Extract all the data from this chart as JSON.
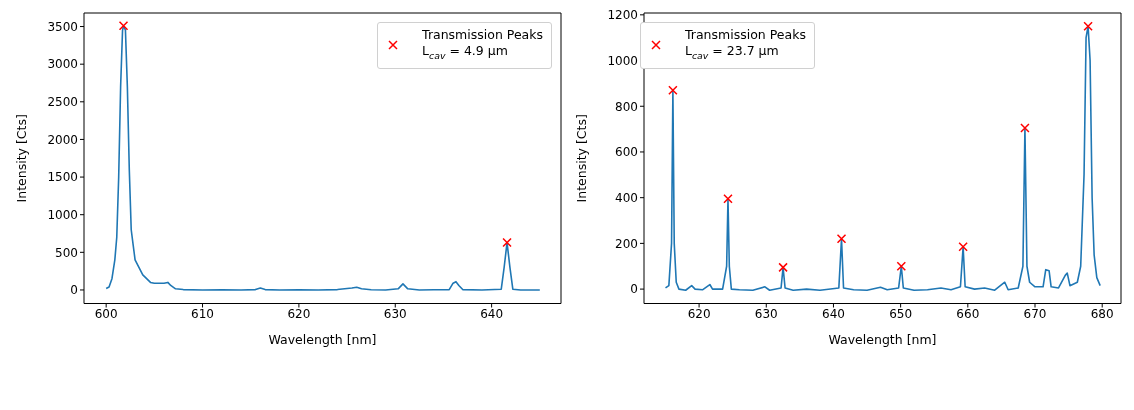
{
  "chart_data": [
    {
      "type": "line",
      "xlabel": "Wavelength [nm]",
      "ylabel": "Intensity [Cts]",
      "xlim": [
        597.7,
        647.2
      ],
      "ylim": [
        -180,
        3680
      ],
      "xticks": [
        600,
        610,
        620,
        630,
        640
      ],
      "yticks": [
        0,
        500,
        1000,
        1500,
        2000,
        2500,
        3000,
        3500
      ],
      "grid": false,
      "legend": "top right",
      "series": [
        {
          "color": "#1f77b4",
          "marker": "none",
          "x": [
            600.0,
            600.3,
            600.6,
            600.9,
            601.1,
            601.3,
            601.5,
            601.7,
            601.8,
            602.0,
            602.2,
            602.4,
            602.6,
            602.8,
            603.0,
            603.4,
            603.8,
            604.2,
            604.6,
            605.0,
            605.5,
            606.0,
            606.4,
            606.7,
            607.2,
            608,
            610,
            612,
            614,
            615.5,
            616.0,
            616.5,
            618,
            620,
            622,
            624,
            625.5,
            626,
            626.5,
            627.5,
            629,
            630.3,
            630.8,
            631.3,
            632.5,
            634,
            635.6,
            636.0,
            636.3,
            636.6,
            637,
            639,
            641.0,
            641.3,
            641.6,
            641.9,
            642.2,
            643,
            645
          ],
          "values": [
            20,
            40,
            150,
            400,
            700,
            1500,
            2700,
            3450,
            3510,
            3450,
            2700,
            1600,
            800,
            600,
            400,
            300,
            200,
            150,
            100,
            90,
            90,
            90,
            100,
            60,
            15,
            5,
            0,
            3,
            0,
            5,
            25,
            5,
            0,
            3,
            0,
            5,
            25,
            35,
            15,
            2,
            0,
            15,
            80,
            15,
            0,
            2,
            5,
            90,
            110,
            60,
            5,
            0,
            10,
            300,
            630,
            300,
            10,
            0,
            0
          ]
        },
        {
          "type": "scatter",
          "name": "Transmission Peaks\nL$_{cav}$ = 4.9 µm",
          "color": "#ff0000",
          "marker": "cross",
          "x": [
            601.8,
            641.6
          ],
          "values": [
            3510,
            630
          ]
        }
      ]
    },
    {
      "type": "line",
      "xlabel": "Wavelength [nm]",
      "ylabel": "Intensity [Cts]",
      "xlim": [
        611.8,
        682.8
      ],
      "ylim": [
        -63,
        1208
      ],
      "xticks": [
        620,
        630,
        640,
        650,
        660,
        670,
        680
      ],
      "yticks": [
        0,
        200,
        400,
        600,
        800,
        1000,
        1200
      ],
      "grid": false,
      "legend": "top left",
      "series": [
        {
          "color": "#1f77b4",
          "marker": "none",
          "x": [
            615,
            615.5,
            615.9,
            616.1,
            616.3,
            616.6,
            617,
            618,
            618.9,
            619.4,
            620.5,
            621.6,
            622,
            623.5,
            624.1,
            624.3,
            624.5,
            624.8,
            626,
            628,
            629.8,
            630.5,
            632.2,
            632.5,
            632.8,
            634,
            636,
            638,
            640.8,
            641.2,
            641.5,
            643,
            645,
            647,
            648,
            649.7,
            650.1,
            650.4,
            652,
            654,
            656,
            657.5,
            658.9,
            659.3,
            659.6,
            661,
            662.5,
            664,
            665.5,
            666,
            667.5,
            668.2,
            668.5,
            668.8,
            669.2,
            670,
            671.2,
            671.6,
            672.1,
            672.4,
            673.5,
            674.5,
            674.8,
            675.2,
            676.3,
            676.8,
            677.3,
            677.6,
            677.9,
            678.2,
            678.5,
            678.8,
            679.2,
            679.7
          ],
          "values": [
            5,
            15,
            200,
            870,
            200,
            30,
            0,
            -5,
            15,
            0,
            -3,
            20,
            0,
            0,
            100,
            395,
            100,
            0,
            -3,
            -5,
            10,
            -5,
            5,
            95,
            5,
            -5,
            0,
            -5,
            5,
            220,
            5,
            -3,
            -5,
            8,
            -3,
            5,
            100,
            5,
            -5,
            -3,
            5,
            -3,
            10,
            185,
            10,
            0,
            5,
            -5,
            30,
            -3,
            5,
            100,
            705,
            100,
            30,
            10,
            10,
            85,
            80,
            10,
            5,
            60,
            70,
            15,
            30,
            100,
            500,
            1100,
            1150,
            1000,
            400,
            150,
            50,
            15
          ]
        },
        {
          "type": "scatter",
          "name": "Transmission Peaks\nL$_{cav}$ = 23.7 µm",
          "color": "#ff0000",
          "marker": "cross",
          "x": [
            616.1,
            624.3,
            632.5,
            641.2,
            650.1,
            659.3,
            668.5,
            677.9
          ],
          "values": [
            870,
            395,
            95,
            220,
            100,
            185,
            705,
            1150
          ]
        }
      ]
    }
  ]
}
